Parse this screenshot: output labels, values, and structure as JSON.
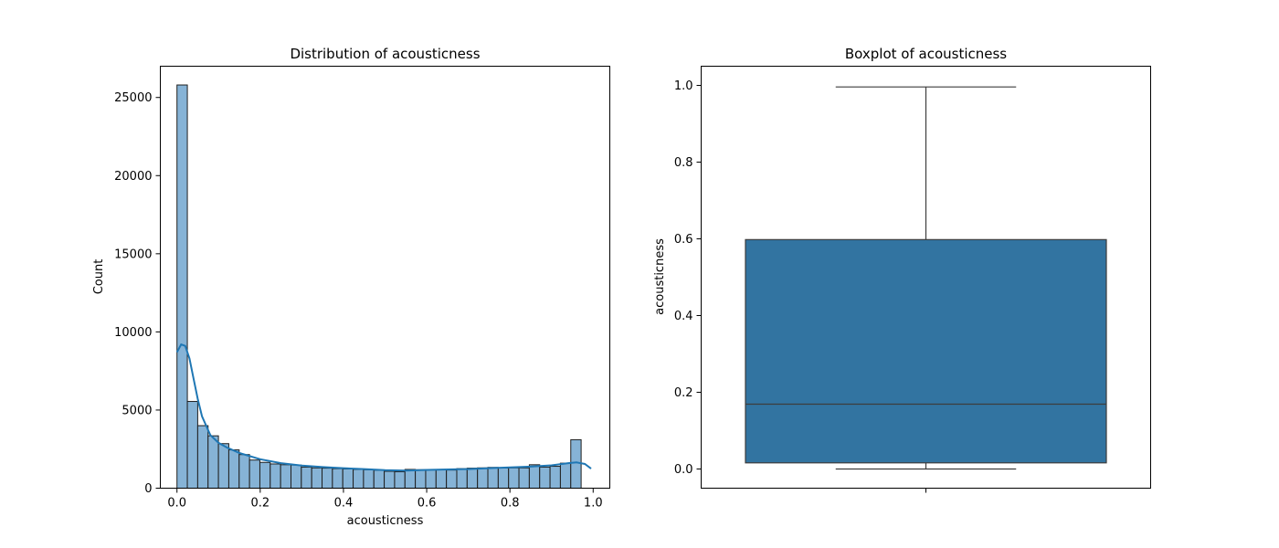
{
  "colors": {
    "hist_fill": "#86b3d6",
    "hist_edge": "#1f1f1f",
    "kde_line": "#1f77b4",
    "box_fill": "#3274a1",
    "box_edge": "#3d3d3d"
  },
  "chart_data": [
    {
      "type": "bar",
      "title": "Distribution of acousticness",
      "xlabel": "acousticness",
      "ylabel": "Count",
      "xlim": [
        -0.04,
        1.04
      ],
      "ylim": [
        0,
        27000
      ],
      "xticks": [
        0.0,
        0.2,
        0.4,
        0.6,
        0.8,
        1.0
      ],
      "xtick_labels": [
        "0.0",
        "0.2",
        "0.4",
        "0.6",
        "0.8",
        "1.0"
      ],
      "yticks": [
        0,
        5000,
        10000,
        15000,
        20000,
        25000
      ],
      "ytick_labels": [
        "0",
        "5000",
        "10000",
        "15000",
        "20000",
        "25000"
      ],
      "bin_start": 0.0,
      "bin_width": 0.0249,
      "values": [
        25800,
        5550,
        4000,
        3350,
        2850,
        2450,
        2150,
        1800,
        1650,
        1550,
        1500,
        1480,
        1350,
        1300,
        1280,
        1250,
        1230,
        1200,
        1180,
        1150,
        1080,
        1050,
        1200,
        1180,
        1190,
        1180,
        1160,
        1250,
        1280,
        1300,
        1330,
        1290,
        1300,
        1300,
        1500,
        1350,
        1400,
        1600,
        3100
      ],
      "kde": {
        "x": [
          0.0,
          0.01,
          0.02,
          0.03,
          0.04,
          0.05,
          0.06,
          0.08,
          0.1,
          0.12,
          0.15,
          0.2,
          0.25,
          0.3,
          0.35,
          0.4,
          0.45,
          0.5,
          0.55,
          0.6,
          0.65,
          0.7,
          0.75,
          0.8,
          0.85,
          0.9,
          0.94,
          0.96,
          0.98,
          0.995
        ],
        "y": [
          8700,
          9200,
          9100,
          8300,
          7000,
          5700,
          4600,
          3400,
          2900,
          2600,
          2250,
          1850,
          1600,
          1450,
          1350,
          1280,
          1220,
          1150,
          1120,
          1170,
          1200,
          1220,
          1280,
          1330,
          1380,
          1460,
          1600,
          1650,
          1550,
          1250
        ]
      },
      "grid": false
    },
    {
      "type": "box",
      "title": "Boxplot of acousticness",
      "xlabel": "",
      "ylabel": "acousticness",
      "ylim": [
        -0.05,
        1.05
      ],
      "yticks": [
        0.0,
        0.2,
        0.4,
        0.6,
        0.8,
        1.0
      ],
      "ytick_labels": [
        "0.0",
        "0.2",
        "0.4",
        "0.6",
        "0.8",
        "1.0"
      ],
      "box": {
        "min": 0.0,
        "q1": 0.016,
        "median": 0.169,
        "q3": 0.598,
        "max": 0.996
      },
      "grid": false
    }
  ]
}
